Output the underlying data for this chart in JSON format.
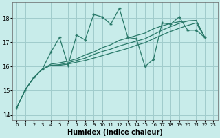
{
  "xlabel": "Humidex (Indice chaleur)",
  "xlim": [
    -0.5,
    23.5
  ],
  "ylim": [
    13.8,
    18.65
  ],
  "yticks": [
    14,
    15,
    16,
    17,
    18
  ],
  "xticks": [
    0,
    1,
    2,
    3,
    4,
    5,
    6,
    7,
    8,
    9,
    10,
    11,
    12,
    13,
    14,
    15,
    16,
    17,
    18,
    19,
    20,
    21,
    22,
    23
  ],
  "bg_color": "#c8ecea",
  "grid_color": "#a0cccc",
  "line_color": "#2a7a6a",
  "line1_x": [
    0,
    1,
    2,
    3,
    4,
    5,
    6,
    7,
    8,
    9,
    10,
    11,
    12,
    13,
    14,
    15,
    16,
    17,
    18,
    19,
    20,
    21,
    22
  ],
  "line1_y": [
    14.3,
    15.05,
    15.55,
    15.9,
    16.6,
    17.2,
    16.05,
    17.3,
    17.1,
    18.15,
    18.05,
    17.75,
    18.4,
    17.2,
    17.15,
    16.0,
    16.3,
    17.8,
    17.75,
    18.05,
    17.5,
    17.5,
    17.2
  ],
  "line2_x": [
    0,
    1,
    2,
    3,
    4,
    5,
    6,
    7,
    8,
    9,
    10,
    11,
    12,
    13,
    14,
    15,
    16,
    17,
    18,
    19,
    20,
    21,
    22
  ],
  "line2_y": [
    14.3,
    15.05,
    15.55,
    15.9,
    16.05,
    16.05,
    16.1,
    16.18,
    16.25,
    16.35,
    16.45,
    16.55,
    16.65,
    16.75,
    16.88,
    16.98,
    17.15,
    17.3,
    17.45,
    17.58,
    17.7,
    17.8,
    17.2
  ],
  "line3_x": [
    0,
    1,
    2,
    3,
    4,
    5,
    6,
    7,
    8,
    9,
    10,
    11,
    12,
    13,
    14,
    15,
    16,
    17,
    18,
    19,
    20,
    21,
    22
  ],
  "line3_y": [
    14.3,
    15.05,
    15.55,
    15.9,
    16.05,
    16.08,
    16.15,
    16.25,
    16.35,
    16.5,
    16.62,
    16.72,
    16.85,
    16.95,
    17.05,
    17.15,
    17.32,
    17.5,
    17.65,
    17.78,
    17.88,
    17.9,
    17.2
  ],
  "line4_x": [
    0,
    1,
    2,
    3,
    4,
    5,
    6,
    7,
    8,
    9,
    10,
    11,
    12,
    13,
    14,
    15,
    16,
    17,
    18,
    19,
    20,
    21,
    22
  ],
  "line4_y": [
    14.3,
    15.05,
    15.55,
    15.9,
    16.1,
    16.15,
    16.22,
    16.32,
    16.48,
    16.6,
    16.78,
    16.9,
    17.08,
    17.18,
    17.28,
    17.38,
    17.56,
    17.68,
    17.78,
    17.85,
    17.88,
    17.9,
    17.2
  ]
}
